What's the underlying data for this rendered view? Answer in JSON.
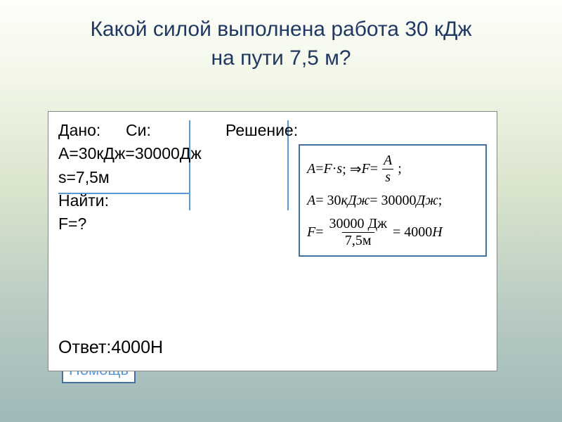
{
  "title_line1": "Какой силой выполнена работа 30 кДж",
  "title_line2": "на пути 7,5 м?",
  "given": {
    "dano": "Дано:",
    "si": "Си:",
    "resh": "Решение:",
    "a": "А=30кДж",
    "a_si": "=30000Дж",
    "s": "s=7,5м",
    "find_label": "Найти:",
    "find": " F=?"
  },
  "formula": {
    "l1_a": "A",
    "l1_eq": " = ",
    "l1_f": "F",
    "l1_dot": " · ",
    "l1_s": "s",
    "l1_arrow": "; ⇒ ",
    "l1_f2": "F",
    "l1_eq2": " = ",
    "l1_num": "A",
    "l1_den": "s",
    "l1_end": ";",
    "l2_a": "A",
    "l2_eq": " = 30",
    "l2_kj": "кДж",
    "l2_eq2": " = 30000 ",
    "l2_j": "Дж",
    "l2_end": ";",
    "l3_f": "F",
    "l3_eq": " = ",
    "l3_num": "30000 Дж",
    "l3_den": "7,5м",
    "l3_eq2": " = 4000 ",
    "l3_n": "Н"
  },
  "answer": "Ответ:4000Н",
  "bg_help": "Помощь",
  "colors": {
    "title": "#203864",
    "line": "#5b9bd5",
    "box_border": "#41719c"
  }
}
